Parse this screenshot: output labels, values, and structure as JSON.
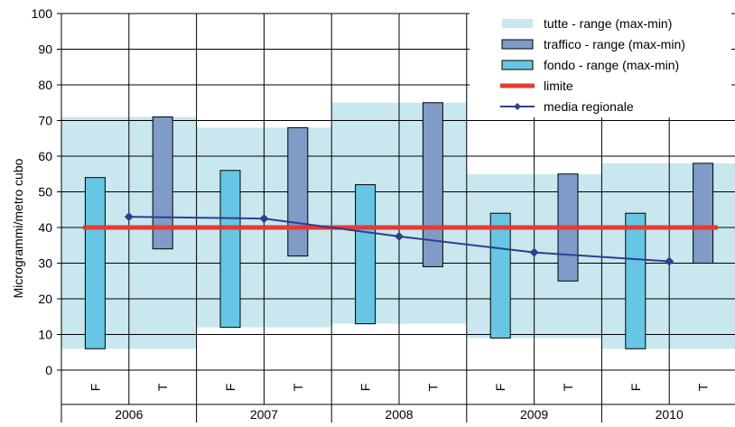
{
  "chart_data": {
    "type": "bar",
    "ylabel": "Microgrammi/metro cubo",
    "ylim": [
      0,
      100
    ],
    "y_ticks": [
      0,
      10,
      20,
      30,
      40,
      50,
      60,
      70,
      80,
      90,
      100
    ],
    "years": [
      "2006",
      "2007",
      "2008",
      "2009",
      "2010"
    ],
    "sub_labels": [
      "F",
      "T"
    ],
    "grid": true,
    "legend_position": "top-right",
    "series": [
      {
        "name": "tutte - range (max-min)",
        "kind": "range-band",
        "color": "#c9e7ef",
        "ranges": [
          [
            6,
            71
          ],
          [
            12,
            68
          ],
          [
            13,
            75
          ],
          [
            9,
            55
          ],
          [
            6,
            58
          ]
        ]
      },
      {
        "name": "traffico - range (max-min)",
        "kind": "range-bar",
        "sub": "T",
        "color": "#7f9bc8",
        "ranges": [
          [
            34,
            71
          ],
          [
            32,
            68
          ],
          [
            29,
            75
          ],
          [
            25,
            55
          ],
          [
            30,
            58
          ]
        ]
      },
      {
        "name": "fondo - range (max-min)",
        "kind": "range-bar",
        "sub": "F",
        "color": "#66c6e3",
        "ranges": [
          [
            6,
            54
          ],
          [
            12,
            56
          ],
          [
            13,
            52
          ],
          [
            9,
            44
          ],
          [
            6,
            44
          ]
        ]
      },
      {
        "name": "limite",
        "kind": "line",
        "color": "#e53a34",
        "value": 40
      },
      {
        "name": "media regionale",
        "kind": "line-markers",
        "color": "#2e3d8f",
        "values": [
          43,
          42.5,
          37.5,
          33,
          30.5
        ]
      }
    ]
  }
}
